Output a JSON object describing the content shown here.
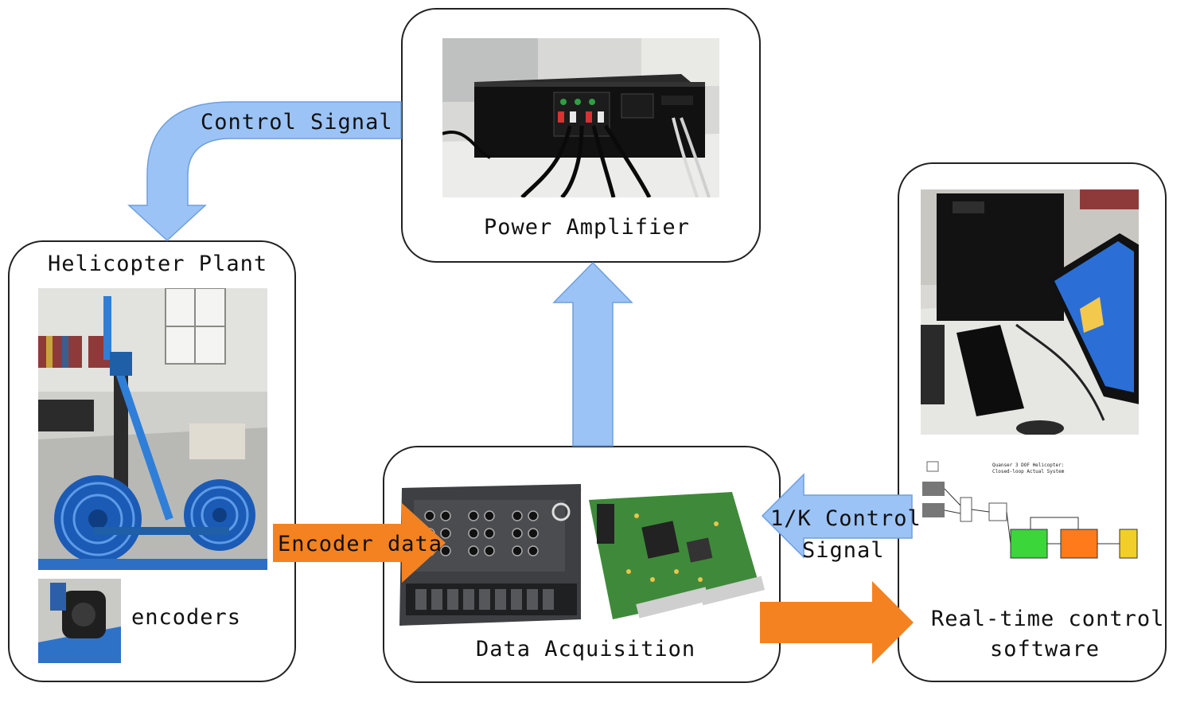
{
  "nodes": {
    "power_amplifier": {
      "label": "Power Amplifier"
    },
    "helicopter_plant": {
      "label": "Helicopter Plant",
      "sub_label": "encoders"
    },
    "data_acquisition": {
      "label": "Data Acquisition"
    },
    "control_software": {
      "label_line1": "Real-time control",
      "label_line2": "software"
    }
  },
  "arrows": {
    "control_signal": {
      "label": "Control Signal",
      "color": "#9cc3f5"
    },
    "encoder_data": {
      "label": "Encoder data",
      "color": "#f58220"
    },
    "daq_to_amp": {
      "label": "",
      "color": "#9cc3f5"
    },
    "k_control_signal": {
      "label_line1": "1/K Control",
      "label_line2": "Signal",
      "color": "#9cc3f5"
    },
    "daq_to_software": {
      "label": "",
      "color": "#f58220"
    }
  },
  "colors": {
    "arrow_blue": "#9cc3f5",
    "arrow_blue_stroke": "#6e9fdc",
    "arrow_orange": "#f58220",
    "box_border": "#222222",
    "simulink_green": "#3ad63a",
    "simulink_orange": "#ff7a1a",
    "simulink_yellow": "#f2cf28"
  },
  "simulink": {
    "title_line1": "Quanser 3 DOF Helicopter:",
    "title_line2": "Closed-loop Actual System"
  }
}
